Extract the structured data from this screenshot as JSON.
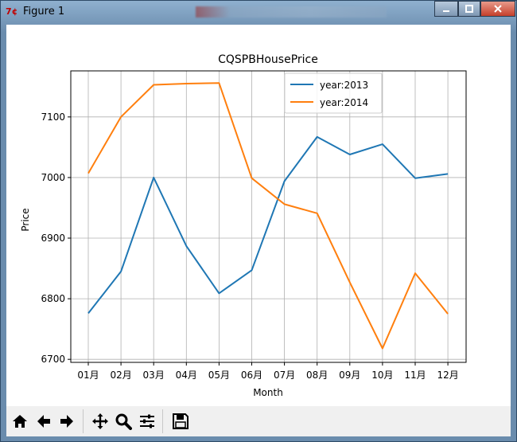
{
  "window": {
    "title": "Figure 1"
  },
  "toolbar": {
    "buttons": [
      "home-icon",
      "back-arrow-icon",
      "forward-arrow-icon",
      "pan-icon",
      "zoom-icon",
      "subplots-icon",
      "save-icon"
    ]
  },
  "chart_data": {
    "type": "line",
    "title": "CQSPBHousePrice",
    "xlabel": "Month",
    "ylabel": "Price",
    "categories": [
      "01月",
      "02月",
      "03月",
      "04月",
      "05月",
      "06月",
      "07月",
      "08月",
      "09月",
      "10月",
      "11月",
      "12月"
    ],
    "yticks": [
      6700,
      6800,
      6900,
      7000,
      7100
    ],
    "ylim": [
      6695,
      7176
    ],
    "grid": true,
    "legend_position": "upper center",
    "series": [
      {
        "name": "year:2013",
        "color": "#1f77b4",
        "values": [
          6776,
          6845,
          7000,
          6887,
          6809,
          6847,
          6994,
          7067,
          7038,
          7055,
          6999,
          7006
        ]
      },
      {
        "name": "year:2014",
        "color": "#ff7f0e",
        "values": [
          7007,
          7100,
          7153,
          7155,
          7156,
          6999,
          6956,
          6941,
          6827,
          6718,
          6842,
          6775
        ]
      }
    ]
  }
}
